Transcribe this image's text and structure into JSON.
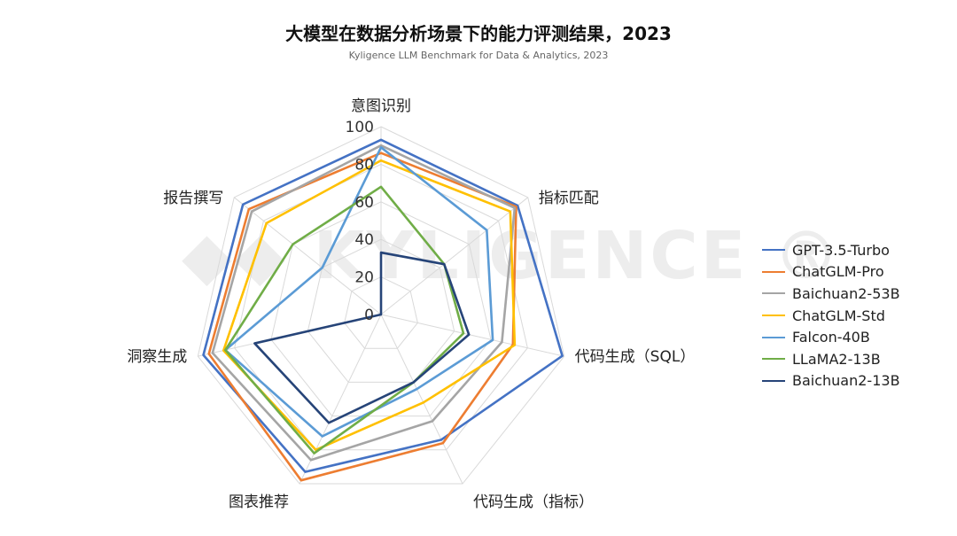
{
  "chart_data": {
    "type": "radar",
    "title": "大模型在数据分析场景下的能力评测结果，2023",
    "subtitle": "Kyligence LLM Benchmark for Data & Analytics, 2023",
    "watermark": "◆◆ KYLIGENCE ®",
    "axes": [
      "意图识别",
      "指标匹配",
      "代码生成（SQL）",
      "代码生成（指标）",
      "图表推荐",
      "洞察生成",
      "报告撰写"
    ],
    "ticks": [
      "0",
      "20",
      "40",
      "60",
      "80",
      "100"
    ],
    "rlim": [
      0,
      100
    ],
    "grid": true,
    "legend_position": "right",
    "series": [
      {
        "name": "GPT-3.5-Turbo",
        "color": "#4472C4",
        "values": [
          93,
          93,
          99,
          74,
          93,
          97,
          94
        ]
      },
      {
        "name": "ChatGLM-Pro",
        "color": "#ED7D31",
        "values": [
          86,
          92,
          72,
          76,
          98,
          94,
          90
        ]
      },
      {
        "name": "Baichuan2-53B",
        "color": "#A5A5A5",
        "values": [
          90,
          91,
          66,
          63,
          86,
          92,
          88
        ]
      },
      {
        "name": "ChatGLM-Std",
        "color": "#FFC000",
        "values": [
          82,
          88,
          73,
          52,
          80,
          86,
          78
        ]
      },
      {
        "name": "Falcon-40B",
        "color": "#5B9BD5",
        "values": [
          89,
          72,
          61,
          44,
          72,
          85,
          40
        ]
      },
      {
        "name": "LLaMA2-13B",
        "color": "#70AD47",
        "values": [
          68,
          43,
          45,
          40,
          82,
          85,
          60
        ]
      },
      {
        "name": "Baichuan2-13B",
        "color": "#264478",
        "values": [
          33,
          43,
          48,
          40,
          64,
          69,
          0
        ]
      }
    ]
  }
}
